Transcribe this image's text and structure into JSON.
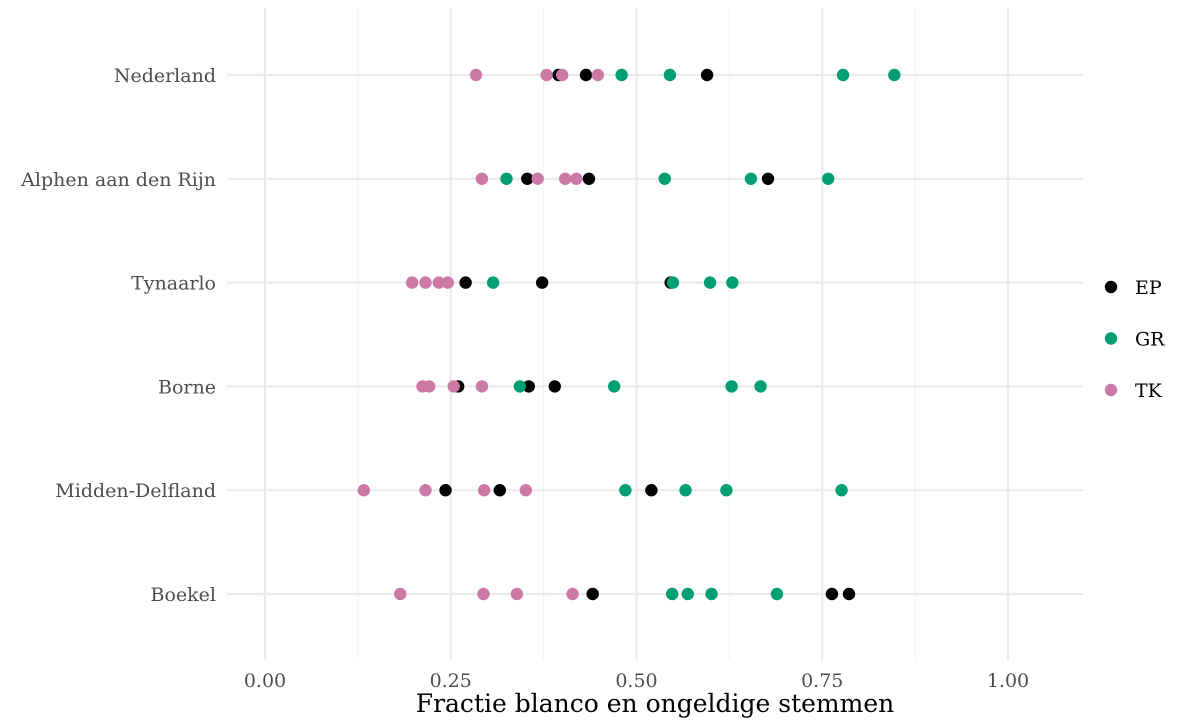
{
  "chart_data": {
    "type": "scatter",
    "title": "",
    "xlabel": "Fractie blanco en ongeldige stemmen",
    "ylabel": "",
    "xlim": [
      -0.04,
      1.04
    ],
    "x_ticks": [
      0,
      0.25,
      0.5,
      0.75,
      1
    ],
    "x_tick_labels": [
      "0.00",
      "0.25",
      "0.50",
      "0.75",
      "1.00"
    ],
    "categories": [
      "Nederland",
      "Alphen aan den Rijn",
      "Tynaarlo",
      "Borne",
      "Midden-Delfland",
      "Boekel"
    ],
    "grid": true,
    "legend_position": "right",
    "series": [
      {
        "name": "EP",
        "color": "#000000",
        "points": [
          {
            "category": "Nederland",
            "x": 0.395
          },
          {
            "category": "Nederland",
            "x": 0.432
          },
          {
            "category": "Nederland",
            "x": 0.595
          },
          {
            "category": "Alphen aan den Rijn",
            "x": 0.353
          },
          {
            "category": "Alphen aan den Rijn",
            "x": 0.436
          },
          {
            "category": "Alphen aan den Rijn",
            "x": 0.677
          },
          {
            "category": "Tynaarlo",
            "x": 0.27
          },
          {
            "category": "Tynaarlo",
            "x": 0.373
          },
          {
            "category": "Tynaarlo",
            "x": 0.546
          },
          {
            "category": "Borne",
            "x": 0.26
          },
          {
            "category": "Borne",
            "x": 0.355
          },
          {
            "category": "Borne",
            "x": 0.39
          },
          {
            "category": "Midden-Delfland",
            "x": 0.243
          },
          {
            "category": "Midden-Delfland",
            "x": 0.316
          },
          {
            "category": "Midden-Delfland",
            "x": 0.52
          },
          {
            "category": "Boekel",
            "x": 0.441
          },
          {
            "category": "Boekel",
            "x": 0.763
          },
          {
            "category": "Boekel",
            "x": 0.786
          }
        ]
      },
      {
        "name": "GR",
        "color": "#009e73",
        "points": [
          {
            "category": "Nederland",
            "x": 0.48
          },
          {
            "category": "Nederland",
            "x": 0.545
          },
          {
            "category": "Nederland",
            "x": 0.778
          },
          {
            "category": "Nederland",
            "x": 0.847
          },
          {
            "category": "Alphen aan den Rijn",
            "x": 0.325
          },
          {
            "category": "Alphen aan den Rijn",
            "x": 0.538
          },
          {
            "category": "Alphen aan den Rijn",
            "x": 0.654
          },
          {
            "category": "Alphen aan den Rijn",
            "x": 0.758
          },
          {
            "category": "Tynaarlo",
            "x": 0.307
          },
          {
            "category": "Tynaarlo",
            "x": 0.549
          },
          {
            "category": "Tynaarlo",
            "x": 0.599
          },
          {
            "category": "Tynaarlo",
            "x": 0.629
          },
          {
            "category": "Borne",
            "x": 0.343
          },
          {
            "category": "Borne",
            "x": 0.47
          },
          {
            "category": "Borne",
            "x": 0.628
          },
          {
            "category": "Borne",
            "x": 0.667
          },
          {
            "category": "Midden-Delfland",
            "x": 0.485
          },
          {
            "category": "Midden-Delfland",
            "x": 0.566
          },
          {
            "category": "Midden-Delfland",
            "x": 0.621
          },
          {
            "category": "Midden-Delfland",
            "x": 0.776
          },
          {
            "category": "Boekel",
            "x": 0.548
          },
          {
            "category": "Boekel",
            "x": 0.569
          },
          {
            "category": "Boekel",
            "x": 0.601
          },
          {
            "category": "Boekel",
            "x": 0.689
          }
        ]
      },
      {
        "name": "TK",
        "color": "#cc79a7",
        "points": [
          {
            "category": "Nederland",
            "x": 0.284
          },
          {
            "category": "Nederland",
            "x": 0.379
          },
          {
            "category": "Nederland",
            "x": 0.4
          },
          {
            "category": "Nederland",
            "x": 0.448
          },
          {
            "category": "Alphen aan den Rijn",
            "x": 0.292
          },
          {
            "category": "Alphen aan den Rijn",
            "x": 0.367
          },
          {
            "category": "Alphen aan den Rijn",
            "x": 0.404
          },
          {
            "category": "Alphen aan den Rijn",
            "x": 0.419
          },
          {
            "category": "Tynaarlo",
            "x": 0.198
          },
          {
            "category": "Tynaarlo",
            "x": 0.216
          },
          {
            "category": "Tynaarlo",
            "x": 0.234
          },
          {
            "category": "Tynaarlo",
            "x": 0.246
          },
          {
            "category": "Borne",
            "x": 0.212
          },
          {
            "category": "Borne",
            "x": 0.221
          },
          {
            "category": "Borne",
            "x": 0.254
          },
          {
            "category": "Borne",
            "x": 0.292
          },
          {
            "category": "Midden-Delfland",
            "x": 0.133
          },
          {
            "category": "Midden-Delfland",
            "x": 0.216
          },
          {
            "category": "Midden-Delfland",
            "x": 0.295
          },
          {
            "category": "Midden-Delfland",
            "x": 0.351
          },
          {
            "category": "Boekel",
            "x": 0.182
          },
          {
            "category": "Boekel",
            "x": 0.294
          },
          {
            "category": "Boekel",
            "x": 0.339
          },
          {
            "category": "Boekel",
            "x": 0.414
          }
        ]
      }
    ]
  }
}
